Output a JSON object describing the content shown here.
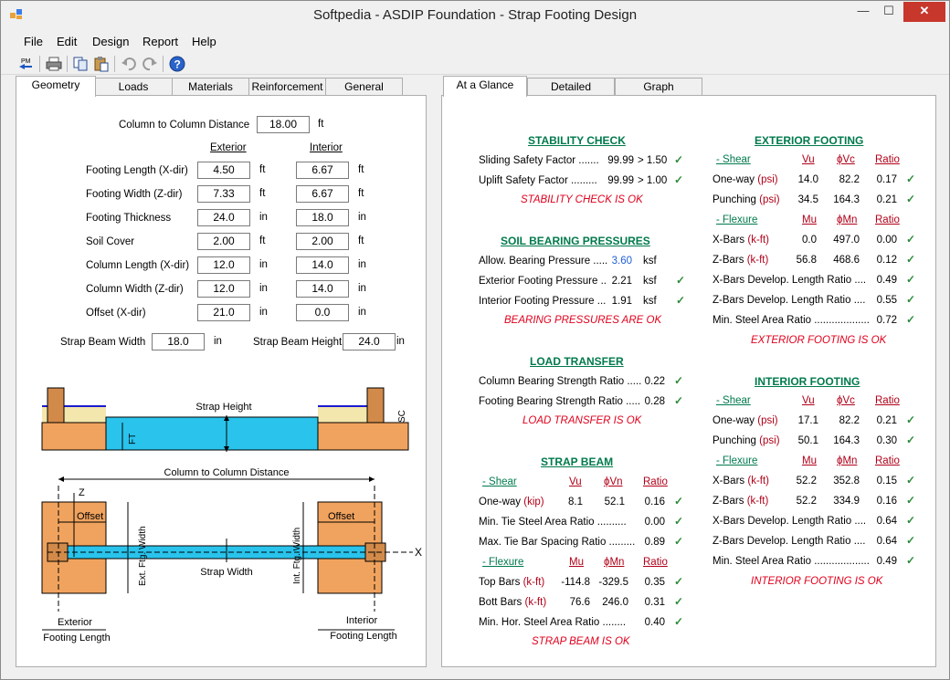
{
  "window": {
    "title": "Softpedia - ASDIP Foundation - Strap Footing Design",
    "min": "—",
    "max": "☐",
    "close": "✕"
  },
  "menu": [
    "File",
    "Edit",
    "Design",
    "Report",
    "Help"
  ],
  "toolbar": [
    "pm-back-icon",
    "print-icon",
    "copy-icon",
    "paste-icon",
    "undo-icon",
    "redo-icon",
    "help-icon"
  ],
  "left_tabs": [
    "Geometry",
    "Loads",
    "Materials",
    "Reinforcement",
    "General"
  ],
  "right_tabs": [
    "At a Glance",
    "Detailed",
    "Graph"
  ],
  "geometry": {
    "c2c_label": "Column to Column Distance",
    "c2c_value": "18.00",
    "c2c_unit": "ft",
    "col_exterior": "Exterior",
    "col_interior": "Interior",
    "rows": [
      {
        "label": "Footing Length (X-dir)",
        "ext": "4.50",
        "ext_unit": "ft",
        "int": "6.67",
        "int_unit": "ft"
      },
      {
        "label": "Footing Width (Z-dir)",
        "ext": "7.33",
        "ext_unit": "ft",
        "int": "6.67",
        "int_unit": "ft"
      },
      {
        "label": "Footing Thickness",
        "ext": "24.0",
        "ext_unit": "in",
        "int": "18.0",
        "int_unit": "in"
      },
      {
        "label": "Soil Cover",
        "ext": "2.00",
        "ext_unit": "ft",
        "int": "2.00",
        "int_unit": "ft"
      },
      {
        "label": "Column Length (X-dir)",
        "ext": "12.0",
        "ext_unit": "in",
        "int": "14.0",
        "int_unit": "in"
      },
      {
        "label": "Column Width (Z-dir)",
        "ext": "12.0",
        "ext_unit": "in",
        "int": "14.0",
        "int_unit": "in"
      },
      {
        "label": "Offset (X-dir)",
        "ext": "21.0",
        "ext_unit": "in",
        "int": "0.0",
        "int_unit": "in"
      }
    ],
    "beam_width_label": "Strap Beam Width",
    "beam_width": "18.0",
    "beam_width_unit": "in",
    "beam_height_label": "Strap Beam Height",
    "beam_height": "24.0",
    "beam_height_unit": "in"
  },
  "diagram": {
    "strap_height": "Strap Height",
    "ft": "FT",
    "sc": "SC",
    "c2c": "Column to Column Distance",
    "z": "Z",
    "x": "X",
    "offset_l": "Offset",
    "offset_r": "Offset",
    "ext_width": "Ext. Ftg. Width",
    "int_width": "Int. Ftg. Width",
    "strap_width": "Strap Width",
    "ext_len1": "Exterior",
    "ext_len2": "Footing Length",
    "int_len1": "Interior",
    "int_len2": "Footing Length"
  },
  "stability": {
    "title": "STABILITY CHECK",
    "rows": [
      {
        "label": "Sliding Safety Factor .......",
        "val": "99.99",
        "lim": "> 1.50"
      },
      {
        "label": "Uplift Safety Factor .........",
        "val": "99.99",
        "lim": "> 1.00"
      }
    ],
    "ok": "STABILITY CHECK IS OK"
  },
  "soil": {
    "title": "SOIL BEARING PRESSURES",
    "rows": [
      {
        "label": "Allow. Bearing Pressure .....",
        "val": "3.60",
        "unit": "ksf"
      },
      {
        "label": "Exterior Footing Pressure ..",
        "val": "2.21",
        "unit": "ksf"
      },
      {
        "label": "Interior Footing Pressure ...",
        "val": "1.91",
        "unit": "ksf"
      }
    ],
    "ok": "BEARING PRESSURES ARE OK"
  },
  "load": {
    "title": "LOAD TRANSFER",
    "rows": [
      {
        "label": "Column Bearing Strength Ratio .....",
        "val": "0.22"
      },
      {
        "label": "Footing Bearing Strength Ratio .....",
        "val": "0.28"
      }
    ],
    "ok": "LOAD TRANSFER IS OK"
  },
  "strap": {
    "title": "STRAP BEAM",
    "shear": "- Shear",
    "vu": "Vu",
    "phivn": "ϕVn",
    "ratio": "Ratio",
    "shear_rows": [
      {
        "label": "One-way",
        "unit": "(kip)",
        "a": "8.1",
        "b": "52.1",
        "r": "0.16"
      }
    ],
    "tie_rows": [
      {
        "label": "Min. Tie Steel Area Ratio ..........",
        "r": "0.00"
      },
      {
        "label": "Max. Tie Bar Spacing Ratio .........",
        "r": "0.89"
      }
    ],
    "flexure": "- Flexure",
    "mu": "Mu",
    "phimn": "ϕMn",
    "ratio2": "Ratio",
    "flex_rows": [
      {
        "label": "Top Bars",
        "unit": "(k-ft)",
        "a": "-114.8",
        "b": "-329.5",
        "r": "0.35"
      },
      {
        "label": "Bott Bars",
        "unit": "(k-ft)",
        "a": "76.6",
        "b": "246.0",
        "r": "0.31"
      }
    ],
    "minhor": {
      "label": "Min. Hor. Steel Area Ratio ........",
      "r": "0.40"
    },
    "ok": "STRAP BEAM IS OK"
  },
  "exterior": {
    "title": "EXTERIOR FOOTING",
    "shear": "- Shear",
    "vu": "Vu",
    "phivc": "ϕVc",
    "ratio": "Ratio",
    "shear_rows": [
      {
        "label": "One-way",
        "unit": "(psi)",
        "a": "14.0",
        "b": "82.2",
        "r": "0.17"
      },
      {
        "label": "Punching",
        "unit": "(psi)",
        "a": "34.5",
        "b": "164.3",
        "r": "0.21"
      }
    ],
    "flexure": "- Flexure",
    "mu": "Mu",
    "phimn": "ϕMn",
    "ratio2": "Ratio",
    "flex_rows": [
      {
        "label": "X-Bars",
        "unit": "(k-ft)",
        "a": "0.0",
        "b": "497.0",
        "r": "0.00"
      },
      {
        "label": "Z-Bars",
        "unit": "(k-ft)",
        "a": "56.8",
        "b": "468.6",
        "r": "0.12"
      }
    ],
    "other_rows": [
      {
        "label": "X-Bars Develop. Length Ratio ....",
        "r": "0.49"
      },
      {
        "label": "Z-Bars Develop. Length Ratio ....",
        "r": "0.55"
      },
      {
        "label": "Min. Steel Area Ratio ...................",
        "r": "0.72"
      }
    ],
    "ok": "EXTERIOR FOOTING IS OK"
  },
  "interior": {
    "title": "INTERIOR FOOTING",
    "shear": "- Shear",
    "vu": "Vu",
    "phivc": "ϕVc",
    "ratio": "Ratio",
    "shear_rows": [
      {
        "label": "One-way",
        "unit": "(psi)",
        "a": "17.1",
        "b": "82.2",
        "r": "0.21"
      },
      {
        "label": "Punching",
        "unit": "(psi)",
        "a": "50.1",
        "b": "164.3",
        "r": "0.30"
      }
    ],
    "flexure": "- Flexure",
    "mu": "Mu",
    "phimn": "ϕMn",
    "ratio2": "Ratio",
    "flex_rows": [
      {
        "label": "X-Bars",
        "unit": "(k-ft)",
        "a": "52.2",
        "b": "352.8",
        "r": "0.15"
      },
      {
        "label": "Z-Bars",
        "unit": "(k-ft)",
        "a": "52.2",
        "b": "334.9",
        "r": "0.16"
      }
    ],
    "other_rows": [
      {
        "label": "X-Bars Develop. Length Ratio ....",
        "r": "0.64"
      },
      {
        "label": "Z-Bars Develop. Length Ratio ....",
        "r": "0.64"
      },
      {
        "label": "Min. Steel Area Ratio ...................",
        "r": "0.49"
      }
    ],
    "ok": "INTERIOR FOOTING IS OK"
  },
  "check": "✓"
}
